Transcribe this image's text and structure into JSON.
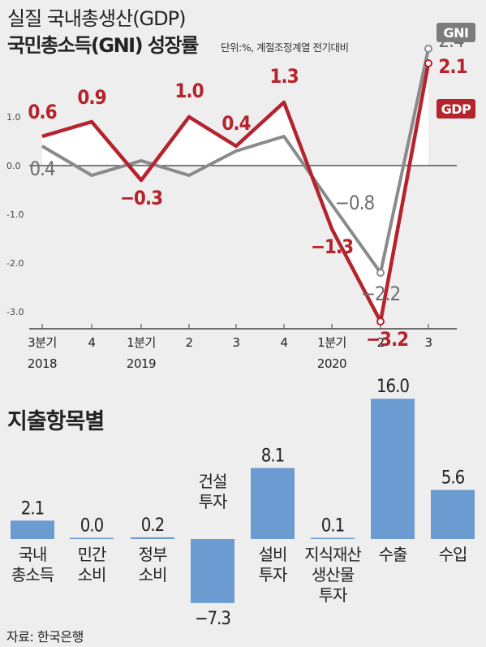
{
  "header": {
    "title_line1": "실질 국내총생산(GDP)",
    "title_line2": "국민총소득(GNI) 성장률",
    "unit_note": "단위:%, 계절조정계열 전기대비"
  },
  "colors": {
    "gdp": "#b5232d",
    "gni": "#8a8a8a",
    "bar": "#6b9bd1",
    "fill": "#ffffff"
  },
  "chart_data": [
    {
      "type": "line",
      "categories": [
        "3분기",
        "4",
        "1분기",
        "2",
        "3",
        "4",
        "1분기",
        "2",
        "3"
      ],
      "year_labels": [
        {
          "index": 0,
          "label": "2018"
        },
        {
          "index": 2,
          "label": "2019"
        },
        {
          "index": 6,
          "label": "2020"
        }
      ],
      "ylim": [
        -4.0,
        1.3
      ],
      "yticks": [
        "1.0",
        "0.0",
        "-1.0",
        "-2.0",
        "-3.0"
      ],
      "series": [
        {
          "name": "GDP",
          "values": [
            0.6,
            0.9,
            -0.3,
            1.0,
            0.4,
            1.3,
            -1.3,
            -3.2,
            2.1
          ],
          "labels": [
            "0.6",
            "0.9",
            "−0.3",
            "1.0",
            "0.4",
            "1.3",
            "−1.3",
            "−3.2",
            "2.1"
          ]
        },
        {
          "name": "GNI",
          "values": [
            0.4,
            -0.2,
            0.1,
            -0.2,
            0.3,
            0.6,
            -0.8,
            -2.2,
            2.4
          ],
          "labels": [
            "0.4",
            "",
            "",
            "",
            "",
            "",
            "−0.8",
            "−2.2",
            "2.4"
          ]
        }
      ]
    },
    {
      "type": "bar",
      "title": "지출항목별",
      "categories": [
        "국내\n총소득",
        "민간\n소비",
        "정부\n소비",
        "건설\n투자",
        "설비\n투자",
        "지식재산\n생산물\n투자",
        "수출",
        "수입"
      ],
      "values": [
        2.1,
        0.0,
        0.2,
        -7.3,
        8.1,
        0.1,
        16.0,
        5.6
      ],
      "labels": [
        "2.1",
        "0.0",
        "0.2",
        "−7.3",
        "8.1",
        "0.1",
        "16.0",
        "5.6"
      ]
    }
  ],
  "source": "자료: 한국은행"
}
